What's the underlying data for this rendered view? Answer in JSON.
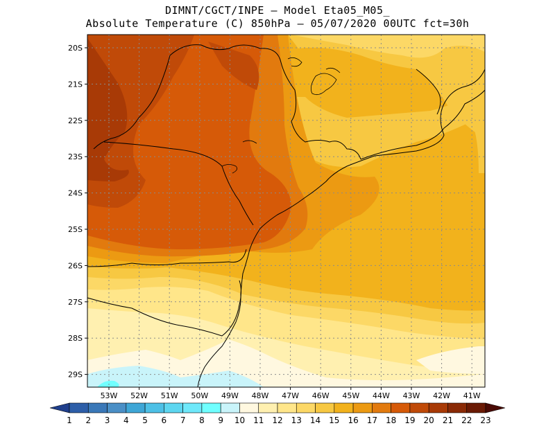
{
  "title": {
    "line1": "DIMNT/CGCT/INPE –  Model Eta05_M05_",
    "line2": "Absolute Temperature (C) 850hPa –  05/07/2020 00UTC fct=30h"
  },
  "map": {
    "lat_labels": [
      "20S",
      "21S",
      "22S",
      "23S",
      "24S",
      "25S",
      "26S",
      "27S",
      "28S",
      "29S"
    ],
    "lon_labels": [
      "53W",
      "52W",
      "51W",
      "50W",
      "49W",
      "48W",
      "47W",
      "46W",
      "45W",
      "44W",
      "43W",
      "42W",
      "41W"
    ]
  },
  "colorbar": {
    "labels": [
      "1",
      "2",
      "3",
      "4",
      "5",
      "6",
      "7",
      "8",
      "9",
      "10",
      "11",
      "12",
      "13",
      "14",
      "15",
      "16",
      "17",
      "18",
      "19",
      "20",
      "21",
      "22",
      "23"
    ],
    "colors": [
      "#1f3f8c",
      "#2d5ea8",
      "#3a78b8",
      "#4a8fc6",
      "#3ea6d6",
      "#4dc0e6",
      "#5dd6f0",
      "#6ee8fa",
      "#70ffff",
      "#c9f4fa",
      "#fff8e0",
      "#fff0b0",
      "#ffe68a",
      "#fcd866",
      "#f7c842",
      "#f2b21c",
      "#ec9a12",
      "#e27a0e",
      "#d65a08",
      "#c04a08",
      "#a83a06",
      "#8a2a06",
      "#6a1a04",
      "#4a0a04"
    ]
  },
  "fields": {
    "colors": {
      "t11": "#fff8e0",
      "t12": "#fff0b0",
      "t13": "#ffe68a",
      "t14": "#fcd866",
      "t15": "#f7c842",
      "t16": "#f2b21c",
      "t17": "#ec9a12",
      "t18": "#e27a0e",
      "t19": "#d65a08",
      "t20": "#c04a08",
      "t21": "#a83a06",
      "t10": "#c9f4fa",
      "t9": "#70ffff"
    }
  }
}
